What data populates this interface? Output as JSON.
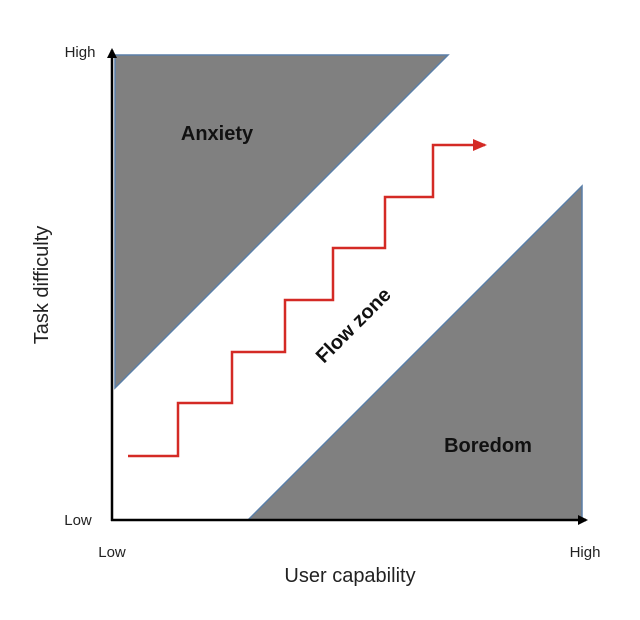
{
  "axes": {
    "y": {
      "title": "Task difficulty",
      "high": "High",
      "low": "Low"
    },
    "x": {
      "title": "User capability",
      "low": "Low",
      "high": "High"
    }
  },
  "regions": {
    "anxiety": "Anxiety",
    "flow": "Flow zone",
    "boredom": "Boredom"
  }
}
